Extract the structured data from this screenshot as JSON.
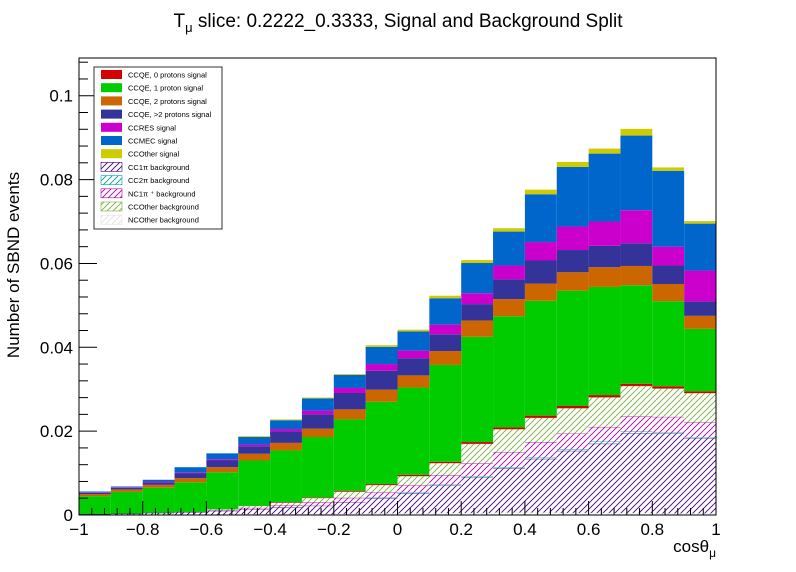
{
  "chart_data": {
    "type": "bar",
    "stacked": true,
    "title_prefix": "T",
    "title_subscript": "μ",
    "title_suffix": " slice: 0.2222_0.3333, Signal and Background Split",
    "xlabel_main": "cosθ",
    "xlabel_subscript": "μ",
    "ylabel": "Number of SBND events",
    "xlim": [
      -1,
      1
    ],
    "ylim": [
      0,
      0.109
    ],
    "bin_width": 0.1,
    "bin_edges": [
      -1.0,
      -0.9,
      -0.8,
      -0.7,
      -0.6,
      -0.5,
      -0.4,
      -0.3,
      -0.2,
      -0.1,
      0.0,
      0.1,
      0.2,
      0.3,
      0.4,
      0.5,
      0.6,
      0.7,
      0.8,
      0.9,
      1.0
    ],
    "x_ticks": [
      "−1",
      "−0.8",
      "−0.6",
      "−0.4",
      "−0.2",
      "0",
      "0.2",
      "0.4",
      "0.6",
      "0.8",
      "1"
    ],
    "x_tick_values": [
      -1,
      -0.8,
      -0.6,
      -0.4,
      -0.2,
      0,
      0.2,
      0.4,
      0.6,
      0.8,
      1
    ],
    "y_ticks": [
      "0",
      "0.02",
      "0.04",
      "0.06",
      "0.08",
      "0.1"
    ],
    "y_tick_values": [
      0,
      0.02,
      0.04,
      0.06,
      0.08,
      0.1
    ],
    "series": [
      {
        "name": "NCOther background",
        "style": "hatch",
        "color": "#e0e0e0",
        "values": [
          0,
          0,
          0,
          0,
          0,
          0.0002,
          0.0002,
          0.0002,
          0.0003,
          0.0004,
          0.0004,
          0.0005,
          0.0005,
          0.0006,
          0.0006,
          0.0005,
          0.0005,
          0.0005,
          0.0004,
          0.0004
        ]
      },
      {
        "name": "CC1π background",
        "style": "hatch",
        "color": "#4b0082",
        "values": [
          0.0002,
          0.0003,
          0.0005,
          0.0007,
          0.001,
          0.0012,
          0.0016,
          0.002,
          0.0028,
          0.0036,
          0.0048,
          0.0065,
          0.0085,
          0.0105,
          0.0128,
          0.0148,
          0.0165,
          0.019,
          0.019,
          0.0179
        ]
      },
      {
        "name": "CC2π background",
        "style": "hatch",
        "color": "#00a0a0",
        "values": [
          0,
          0,
          0,
          0,
          0,
          0,
          0,
          0,
          0,
          0.0002,
          0.0003,
          0.0003,
          0.0003,
          0.0003,
          0.0004,
          0.0004,
          0.0005,
          0.0004,
          0.0003,
          0.0003
        ]
      },
      {
        "name": "NC1π ⁺ background",
        "style": "hatch",
        "color": "#b000b0",
        "values": [
          0,
          0,
          0,
          0,
          0.0001,
          0.0003,
          0.0005,
          0.0008,
          0.001,
          0.0012,
          0.0016,
          0.0022,
          0.003,
          0.0036,
          0.0036,
          0.0037,
          0.0035,
          0.0036,
          0.0037,
          0.0035
        ]
      },
      {
        "name": "CCOther background",
        "style": "hatch",
        "color": "#7bb040",
        "values": [
          0,
          0,
          0,
          0,
          0.0003,
          0.0005,
          0.0007,
          0.0011,
          0.0015,
          0.0018,
          0.0022,
          0.0029,
          0.0047,
          0.0055,
          0.0058,
          0.0061,
          0.0071,
          0.0073,
          0.0068,
          0.007
        ]
      },
      {
        "name": "CCQE, 0 protons signal",
        "style": "solid",
        "color": "#d50000",
        "values": [
          0,
          0,
          0,
          0,
          0,
          0,
          0.0001,
          0.0001,
          0.0002,
          0.0002,
          0.0003,
          0.0003,
          0.0004,
          0.0004,
          0.0005,
          0.0005,
          0.0005,
          0.0005,
          0.0005,
          0.0004
        ]
      },
      {
        "name": "CCQE, 1 proton signal",
        "style": "solid",
        "color": "#00cc00",
        "values": [
          0.0043,
          0.0052,
          0.006,
          0.0071,
          0.0088,
          0.0108,
          0.0123,
          0.0144,
          0.017,
          0.0196,
          0.0208,
          0.0231,
          0.0251,
          0.0265,
          0.0274,
          0.0275,
          0.0258,
          0.0235,
          0.0203,
          0.0149
        ]
      },
      {
        "name": "CCQE, 2 protons signal",
        "style": "solid",
        "color": "#cc6600",
        "values": [
          0.0005,
          0.0006,
          0.0007,
          0.001,
          0.0012,
          0.0016,
          0.0018,
          0.002,
          0.0024,
          0.0029,
          0.0029,
          0.0033,
          0.0039,
          0.0041,
          0.0041,
          0.0044,
          0.0047,
          0.0046,
          0.0041,
          0.0031
        ]
      },
      {
        "name": "CCQE, >2 protons signal",
        "style": "solid",
        "color": "#333399",
        "values": [
          0.0003,
          0.0004,
          0.0006,
          0.0012,
          0.0016,
          0.0018,
          0.0027,
          0.0034,
          0.0039,
          0.0045,
          0.0041,
          0.004,
          0.0039,
          0.0047,
          0.0055,
          0.0053,
          0.0051,
          0.0054,
          0.0044,
          0.0034
        ]
      },
      {
        "name": "CCRES signal",
        "style": "solid",
        "color": "#cc00cc",
        "values": [
          0.0001,
          0.0001,
          0.0002,
          0.0002,
          0.0003,
          0.0004,
          0.0006,
          0.0009,
          0.0012,
          0.0016,
          0.0018,
          0.0023,
          0.0026,
          0.0033,
          0.0044,
          0.0056,
          0.0058,
          0.0079,
          0.0045,
          0.0074
        ]
      },
      {
        "name": "CCMEC signal",
        "style": "solid",
        "color": "#0066cc",
        "values": [
          0.0002,
          0.0002,
          0.0004,
          0.0012,
          0.0014,
          0.0018,
          0.0021,
          0.0029,
          0.0031,
          0.0041,
          0.0046,
          0.0063,
          0.0072,
          0.0081,
          0.0114,
          0.0142,
          0.0162,
          0.0178,
          0.0181,
          0.0112
        ]
      },
      {
        "name": "CCOther signal",
        "style": "solid",
        "color": "#cccc00",
        "values": [
          0,
          0,
          0,
          0,
          0,
          0.0002,
          0.0002,
          0.0002,
          0.0002,
          0.0004,
          0.0004,
          0.0006,
          0.0007,
          0.0008,
          0.0011,
          0.0012,
          0.0012,
          0.0016,
          0.0008,
          0.0006
        ]
      }
    ],
    "legend_order": [
      "CCQE, 0 protons signal",
      "CCQE, 1 proton signal",
      "CCQE, 2 protons signal",
      "CCQE, >2 protons signal",
      "CCRES signal",
      "CCMEC signal",
      "CCOther signal",
      "CC1π background",
      "CC2π background",
      "NC1π ⁺ background",
      "CCOther background",
      "NCOther background"
    ],
    "legend_position": "top-left",
    "grid": false
  }
}
